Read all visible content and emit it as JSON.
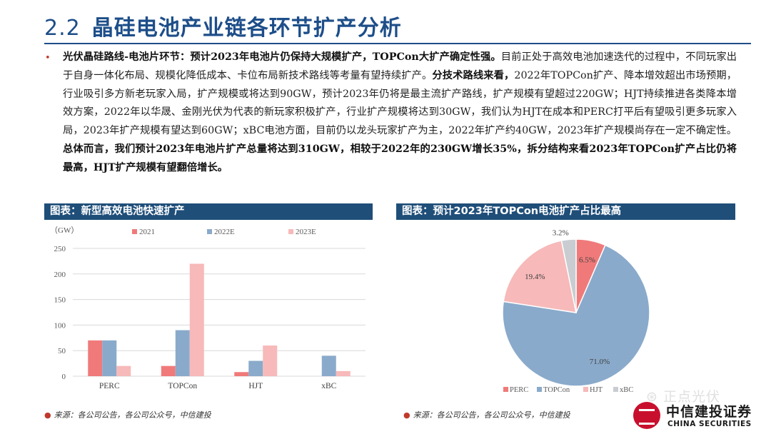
{
  "header": {
    "section_number": "2.2",
    "title": "晶硅电池产业链各环节扩产分析"
  },
  "body": {
    "bullet_glyph": "•",
    "segments": [
      {
        "text": "光伏晶硅路线-电池片环节：预计2023年电池片仍保持大规模扩产，TOPCon大扩产确定性强。",
        "bold": true
      },
      {
        "text": "目前正处于高效电池加速迭代的过程中，不同玩家出于自身一体化布局、规模化降低成本、卡位布局新技术路线等考量有望持续扩产。",
        "bold": false
      },
      {
        "text": "分技术路线来看，",
        "bold": true
      },
      {
        "text": "2022年TOPCon扩产、降本增效超出市场预期，行业吸引多方新老玩家入局，扩产规模或将达到90GW，预计2023年仍将是最主流扩产路线，扩产规模有望超过220GW；HJT持续推进各类降本增效方案，2022年以华晟、金刚光伏为代表的新玩家积极扩产，行业扩产规模将达到30GW，我们认为HJT在成本和PERC打平后有望吸引更多玩家入局，2023年扩产规模有望达到60GW；xBC电池方面，目前仍以龙头玩家扩产为主，2022年扩产约40GW，2023年扩产规模尚存在一定不确定性。",
        "bold": false
      },
      {
        "text": "总体而言，我们预计2023年电池片扩产总量将达到310GW，相较于2022年的230GW增长35%，拆分结构来看2023年TOPCon扩产占比仍将最高，HJT扩产规模有望翻倍增长。",
        "bold": true
      }
    ]
  },
  "left_panel": {
    "title": "图表：新型高效电池快速扩产",
    "source": "来源：各公司公告，各公司公众号，中信建投"
  },
  "right_panel": {
    "title": "图表：预计2023年TOPCon电池扩产占比最高",
    "source": "来源：各公司公告，各公司公众号，中信建投"
  },
  "chart_data": [
    {
      "type": "bar",
      "title": "新型高效电池快速扩产",
      "ylabel": "（GW）",
      "categories": [
        "PERC",
        "TOPCon",
        "HJT",
        "xBC"
      ],
      "series": [
        {
          "name": "2021",
          "color": "#f07a7a",
          "values": [
            70,
            20,
            8,
            0
          ]
        },
        {
          "name": "2022E",
          "color": "#8aaacb",
          "values": [
            70,
            90,
            30,
            40
          ]
        },
        {
          "name": "2023E",
          "color": "#f7b9b9",
          "values": [
            20,
            220,
            60,
            10
          ]
        }
      ],
      "ylim": [
        0,
        250
      ],
      "yticks": [
        0,
        50,
        100,
        150,
        200,
        250
      ],
      "grid": true,
      "legend": "top"
    },
    {
      "type": "pie",
      "title": "预计2023年TOPCon电池扩产占比最高",
      "slices": [
        {
          "label": "PERC",
          "value": 6.5,
          "display": "6.5%",
          "color": "#f07a7a"
        },
        {
          "label": "TOPCon",
          "value": 71.0,
          "display": "71.0%",
          "color": "#8aaacb"
        },
        {
          "label": "HJT",
          "value": 19.4,
          "display": "19.4%",
          "color": "#f7b9b9"
        },
        {
          "label": "xBC",
          "value": 3.2,
          "display": "3.2%",
          "color": "#c9cdd1"
        }
      ],
      "legend": "bottom"
    }
  ],
  "watermark": {
    "text": "正点光伏"
  },
  "logo": {
    "cn": "中信建投证券",
    "en": "CHINA SECURITIES"
  }
}
